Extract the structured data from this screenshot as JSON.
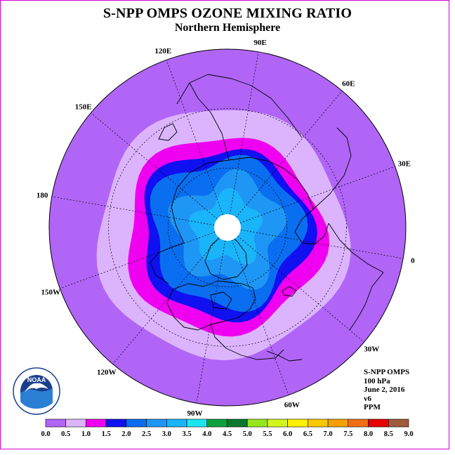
{
  "title": "S-NPP OMPS OZONE MIXING RATIO",
  "subtitle": "Northern Hemisphere",
  "longitude_labels": [
    {
      "text": "90E",
      "angle": 90
    },
    {
      "text": "60E",
      "angle": 60
    },
    {
      "text": "30E",
      "angle": 30
    },
    {
      "text": "0",
      "angle": 0
    },
    {
      "text": "30W",
      "angle": -30
    },
    {
      "text": "60W",
      "angle": -60
    },
    {
      "text": "90W",
      "angle": -90
    },
    {
      "text": "120W",
      "angle": -120
    },
    {
      "text": "150W",
      "angle": -150
    },
    {
      "text": "180",
      "angle": 180
    },
    {
      "text": "150E",
      "angle": 150
    },
    {
      "text": "120E",
      "angle": 120
    }
  ],
  "info": {
    "instrument": "S-NPP OMPS",
    "level": "100 hPa",
    "date": "June 2, 2016",
    "version": "v6",
    "units": "PPM"
  },
  "logo_text": "NOAA",
  "color_scale": {
    "ticks": [
      "0.0",
      "0.5",
      "1.0",
      "1.5",
      "2.0",
      "2.5",
      "3.0",
      "3.5",
      "4.0",
      "4.5",
      "5.0",
      "5.5",
      "6.0",
      "6.5",
      "7.0",
      "7.5",
      "8.0",
      "8.5",
      "9.0"
    ],
    "colors": [
      "#b065f7",
      "#dcb4fd",
      "#f000f0",
      "#1010f0",
      "#0a6ef0",
      "#1e96f5",
      "#19b4fa",
      "#1ee6f0",
      "#0aa03c",
      "#0a782d",
      "#96e61e",
      "#d2f51e",
      "#fff000",
      "#fac800",
      "#f5a000",
      "#f06e14",
      "#e60000",
      "#a05a3c"
    ]
  },
  "map_colors": {
    "background": "#b065f7",
    "band_0_5": "#dcb4fd",
    "band_1_0": "#f000f0",
    "band_1_5": "#1010f0",
    "band_2_0": "#0a6ef0",
    "band_2_5": "#1e96f5",
    "band_3_0": "#19b4fa"
  }
}
